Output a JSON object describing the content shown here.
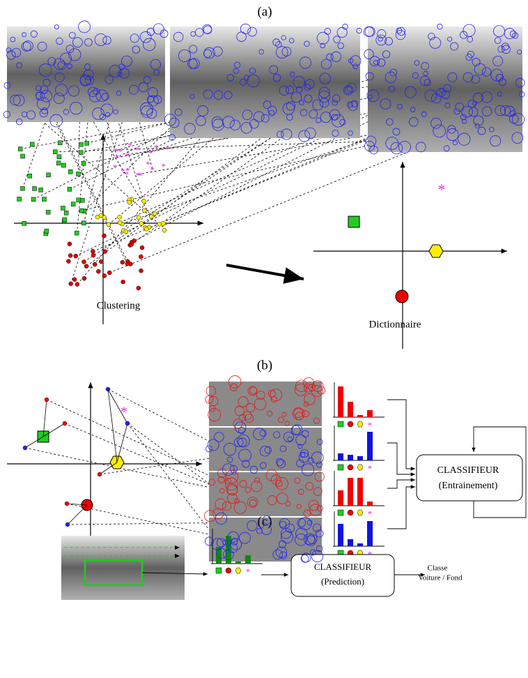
{
  "panels": [
    {
      "label": "(a)",
      "left_caption": "Clustering",
      "right_caption": "Dictionnaire"
    },
    {
      "label": "(b)",
      "classifier": {
        "title": "CLASSIFIEUR",
        "subtitle": "(Entrainement)"
      }
    },
    {
      "label": "(c)",
      "classifier": {
        "title": "CLASSIFIEUR",
        "subtitle": "(Prediction)"
      },
      "output": {
        "title": "Classe",
        "subtitle": "Voiture / Fond"
      }
    }
  ]
}
